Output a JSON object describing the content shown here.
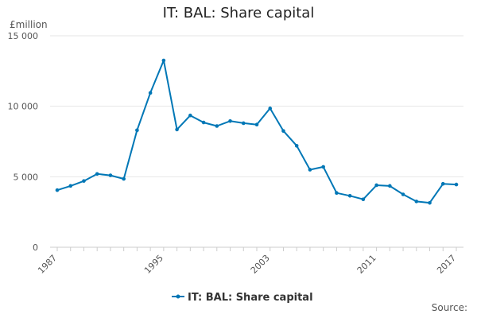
{
  "title": "IT: BAL: Share capital",
  "y_unit": "£million",
  "source_label": "Source:",
  "colors": {
    "series": "#0077b6",
    "grid": "#e6e6e6",
    "axis": "#cccccc"
  },
  "chart_data": {
    "type": "line",
    "title": "IT: BAL: Share capital",
    "xlabel": "",
    "ylabel": "£million",
    "x": [
      1987,
      1988,
      1989,
      1990,
      1991,
      1992,
      1993,
      1994,
      1995,
      1996,
      1997,
      1998,
      1999,
      2000,
      2001,
      2002,
      2003,
      2004,
      2005,
      2006,
      2007,
      2008,
      2009,
      2010,
      2011,
      2012,
      2013,
      2014,
      2015,
      2016,
      2017
    ],
    "x_tick_labels": [
      "1987",
      "1995",
      "2003",
      "2011",
      "2017"
    ],
    "y_ticks": [
      0,
      5000,
      10000,
      15000
    ],
    "y_tick_labels": [
      "0",
      "5 000",
      "10 000",
      "15 000"
    ],
    "ylim": [
      0,
      15000
    ],
    "grid": true,
    "legend_position": "bottom",
    "series": [
      {
        "name": "IT: BAL: Share capital",
        "values": [
          4050,
          4350,
          4700,
          5200,
          5100,
          4850,
          8300,
          10950,
          13250,
          8350,
          9350,
          8850,
          8600,
          8950,
          8800,
          8700,
          9850,
          8250,
          7200,
          5500,
          5700,
          3850,
          3650,
          3400,
          4400,
          4350,
          3750,
          3250,
          3150,
          4500,
          4450
        ]
      }
    ]
  }
}
